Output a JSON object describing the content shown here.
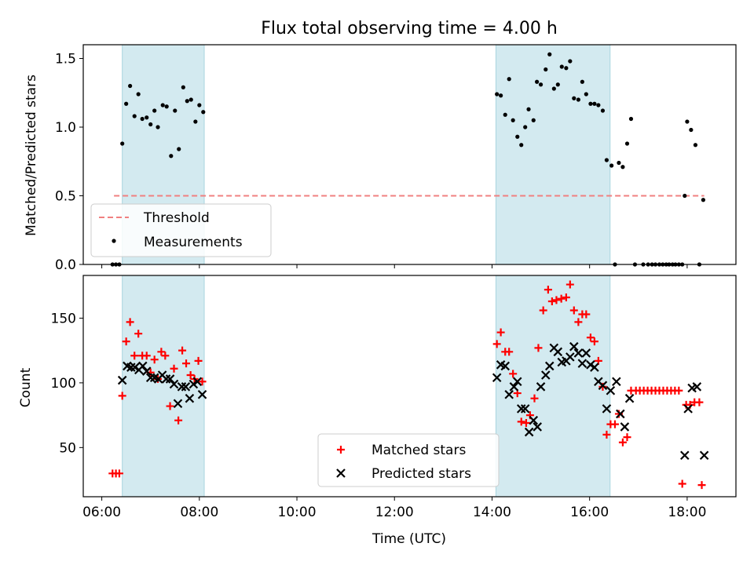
{
  "chart_data": {
    "type": "scatter",
    "title": "Flux total observing time = 4.00 h",
    "x_range_hours": [
      5.62,
      19.0
    ],
    "x_ticks": [
      "06:00",
      "08:00",
      "10:00",
      "12:00",
      "14:00",
      "16:00",
      "18:00"
    ],
    "xlabel": "Time (UTC)",
    "shaded_intervals_hours": [
      [
        6.42,
        8.1
      ],
      [
        14.08,
        16.42
      ]
    ],
    "shade_color": "#d3eaf0",
    "panels": [
      {
        "ylabel": "Matched/Predicted stars",
        "ylim": [
          0,
          1.6
        ],
        "y_ticks": [
          "0.0",
          "0.5",
          "1.0",
          "1.5"
        ],
        "legend_position": "lower-left",
        "threshold": {
          "name": "Threshold",
          "value": 0.5,
          "x_range_hours": [
            6.25,
            18.35
          ],
          "color": "#f08080"
        },
        "measurements": {
          "name": "Measurements",
          "color": "#000000",
          "points": [
            [
              6.22,
              0.0
            ],
            [
              6.29,
              0.0
            ],
            [
              6.36,
              0.0
            ],
            [
              6.42,
              0.88
            ],
            [
              6.5,
              1.17
            ],
            [
              6.58,
              1.3
            ],
            [
              6.67,
              1.08
            ],
            [
              6.75,
              1.24
            ],
            [
              6.83,
              1.06
            ],
            [
              6.92,
              1.07
            ],
            [
              7.0,
              1.02
            ],
            [
              7.08,
              1.12
            ],
            [
              7.15,
              1.0
            ],
            [
              7.25,
              1.16
            ],
            [
              7.33,
              1.15
            ],
            [
              7.42,
              0.79
            ],
            [
              7.5,
              1.12
            ],
            [
              7.58,
              0.84
            ],
            [
              7.67,
              1.29
            ],
            [
              7.75,
              1.19
            ],
            [
              7.83,
              1.2
            ],
            [
              7.92,
              1.04
            ],
            [
              8.0,
              1.16
            ],
            [
              8.08,
              1.11
            ],
            [
              14.1,
              1.24
            ],
            [
              14.18,
              1.23
            ],
            [
              14.27,
              1.09
            ],
            [
              14.35,
              1.35
            ],
            [
              14.43,
              1.05
            ],
            [
              14.52,
              0.93
            ],
            [
              14.6,
              0.87
            ],
            [
              14.68,
              1.0
            ],
            [
              14.75,
              1.13
            ],
            [
              14.85,
              1.05
            ],
            [
              14.92,
              1.33
            ],
            [
              15.0,
              1.31
            ],
            [
              15.1,
              1.42
            ],
            [
              15.18,
              1.53
            ],
            [
              15.27,
              1.28
            ],
            [
              15.35,
              1.31
            ],
            [
              15.43,
              1.44
            ],
            [
              15.52,
              1.43
            ],
            [
              15.6,
              1.48
            ],
            [
              15.68,
              1.21
            ],
            [
              15.77,
              1.2
            ],
            [
              15.85,
              1.33
            ],
            [
              15.93,
              1.24
            ],
            [
              16.02,
              1.17
            ],
            [
              16.1,
              1.17
            ],
            [
              16.18,
              1.16
            ],
            [
              16.27,
              1.12
            ],
            [
              16.35,
              0.76
            ],
            [
              16.45,
              0.72
            ],
            [
              16.52,
              0.0
            ],
            [
              16.6,
              0.74
            ],
            [
              16.68,
              0.71
            ],
            [
              16.77,
              0.88
            ],
            [
              16.85,
              1.06
            ],
            [
              16.93,
              0.0
            ],
            [
              17.1,
              0.0
            ],
            [
              17.2,
              0.0
            ],
            [
              17.28,
              0.0
            ],
            [
              17.35,
              0.0
            ],
            [
              17.43,
              0.0
            ],
            [
              17.5,
              0.0
            ],
            [
              17.57,
              0.0
            ],
            [
              17.63,
              0.0
            ],
            [
              17.7,
              0.0
            ],
            [
              17.76,
              0.0
            ],
            [
              17.83,
              0.0
            ],
            [
              17.9,
              0.0
            ],
            [
              17.95,
              0.5
            ],
            [
              18.0,
              1.04
            ],
            [
              18.08,
              0.98
            ],
            [
              18.17,
              0.87
            ],
            [
              18.25,
              0.0
            ],
            [
              18.33,
              0.47
            ]
          ]
        }
      },
      {
        "ylabel": "Count",
        "ylim": [
          12,
          183
        ],
        "y_ticks": [
          "50",
          "100",
          "150"
        ],
        "legend_position": "lower-center",
        "matched": {
          "name": "Matched stars",
          "color": "#ff0000",
          "points": [
            [
              6.22,
              30
            ],
            [
              6.29,
              30
            ],
            [
              6.36,
              30
            ],
            [
              6.42,
              90
            ],
            [
              6.5,
              132
            ],
            [
              6.58,
              147
            ],
            [
              6.67,
              121
            ],
            [
              6.75,
              138
            ],
            [
              6.83,
              121
            ],
            [
              6.92,
              121
            ],
            [
              7.0,
              108
            ],
            [
              7.08,
              118
            ],
            [
              7.15,
              103
            ],
            [
              7.22,
              124
            ],
            [
              7.3,
              121
            ],
            [
              7.4,
              82
            ],
            [
              7.48,
              111
            ],
            [
              7.57,
              71
            ],
            [
              7.65,
              125
            ],
            [
              7.73,
              115
            ],
            [
              7.82,
              106
            ],
            [
              7.9,
              103
            ],
            [
              7.98,
              117
            ],
            [
              8.06,
              101
            ],
            [
              14.1,
              130
            ],
            [
              14.18,
              139
            ],
            [
              14.27,
              124
            ],
            [
              14.35,
              124
            ],
            [
              14.43,
              107
            ],
            [
              14.52,
              92
            ],
            [
              14.6,
              70
            ],
            [
              14.7,
              69
            ],
            [
              14.78,
              75
            ],
            [
              14.87,
              88
            ],
            [
              14.95,
              127
            ],
            [
              15.05,
              156
            ],
            [
              15.15,
              172
            ],
            [
              15.23,
              163
            ],
            [
              15.32,
              164
            ],
            [
              15.42,
              165
            ],
            [
              15.52,
              166
            ],
            [
              15.6,
              176
            ],
            [
              15.68,
              156
            ],
            [
              15.77,
              147
            ],
            [
              15.85,
              153
            ],
            [
              15.93,
              153
            ],
            [
              16.02,
              135
            ],
            [
              16.1,
              132
            ],
            [
              16.18,
              117
            ],
            [
              16.27,
              97
            ],
            [
              16.35,
              60
            ],
            [
              16.43,
              68
            ],
            [
              16.52,
              68
            ],
            [
              16.6,
              76
            ],
            [
              16.68,
              54
            ],
            [
              16.77,
              58
            ],
            [
              16.85,
              94
            ],
            [
              16.95,
              94
            ],
            [
              17.03,
              94
            ],
            [
              17.11,
              94
            ],
            [
              17.19,
              94
            ],
            [
              17.27,
              94
            ],
            [
              17.35,
              94
            ],
            [
              17.43,
              94
            ],
            [
              17.51,
              94
            ],
            [
              17.59,
              94
            ],
            [
              17.67,
              94
            ],
            [
              17.75,
              94
            ],
            [
              17.83,
              94
            ],
            [
              17.9,
              22
            ],
            [
              17.98,
              83
            ],
            [
              18.06,
              83
            ],
            [
              18.15,
              85
            ],
            [
              18.25,
              85
            ],
            [
              18.3,
              21
            ]
          ]
        },
        "predicted": {
          "name": "Predicted stars",
          "color": "#000000",
          "points": [
            [
              6.42,
              102
            ],
            [
              6.52,
              113
            ],
            [
              6.6,
              112
            ],
            [
              6.68,
              112
            ],
            [
              6.76,
              110
            ],
            [
              6.84,
              113
            ],
            [
              6.92,
              109
            ],
            [
              7.0,
              104
            ],
            [
              7.08,
              104
            ],
            [
              7.16,
              103
            ],
            [
              7.24,
              106
            ],
            [
              7.32,
              103
            ],
            [
              7.4,
              103
            ],
            [
              7.48,
              99
            ],
            [
              7.56,
              84
            ],
            [
              7.64,
              97
            ],
            [
              7.72,
              97
            ],
            [
              7.8,
              88
            ],
            [
              7.88,
              99
            ],
            [
              7.96,
              101
            ],
            [
              8.06,
              91
            ],
            [
              14.1,
              104
            ],
            [
              14.18,
              114
            ],
            [
              14.27,
              113
            ],
            [
              14.35,
              91
            ],
            [
              14.45,
              97
            ],
            [
              14.52,
              101
            ],
            [
              14.6,
              80
            ],
            [
              14.68,
              80
            ],
            [
              14.76,
              62
            ],
            [
              14.85,
              71
            ],
            [
              14.93,
              66
            ],
            [
              15.0,
              97
            ],
            [
              15.1,
              106
            ],
            [
              15.18,
              113
            ],
            [
              15.27,
              127
            ],
            [
              15.35,
              124
            ],
            [
              15.43,
              116
            ],
            [
              15.52,
              117
            ],
            [
              15.6,
              120
            ],
            [
              15.68,
              128
            ],
            [
              15.77,
              123
            ],
            [
              15.85,
              115
            ],
            [
              15.93,
              123
            ],
            [
              16.02,
              114
            ],
            [
              16.1,
              112
            ],
            [
              16.18,
              101
            ],
            [
              16.27,
              98
            ],
            [
              16.35,
              80
            ],
            [
              16.43,
              94
            ],
            [
              16.55,
              101
            ],
            [
              16.63,
              76
            ],
            [
              16.72,
              66
            ],
            [
              16.82,
              88
            ],
            [
              17.95,
              44
            ],
            [
              18.02,
              80
            ],
            [
              18.1,
              96
            ],
            [
              18.2,
              97
            ],
            [
              18.35,
              44
            ]
          ]
        }
      }
    ]
  }
}
